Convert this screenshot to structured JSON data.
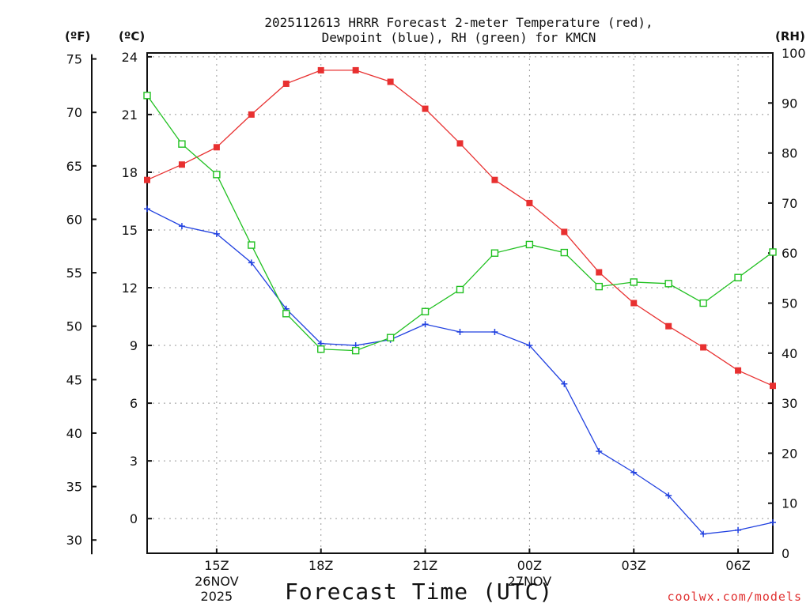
{
  "title": {
    "line1": "2025112613 HRRR Forecast 2-meter Temperature (red),",
    "line2": "Dewpoint (blue), RH (green) for KMCN"
  },
  "units": {
    "fahrenheit": "(ºF)",
    "celsius": "(ºC)",
    "rh": "(RH)"
  },
  "credit": "coolwx.com/models",
  "chart_data": {
    "type": "line",
    "title": "2025112613 HRRR Forecast 2-meter Temperature (red), Dewpoint (blue), RH (green) for KMCN",
    "xlabel": "Forecast Time (UTC)",
    "x": [
      13,
      14,
      15,
      16,
      17,
      18,
      19,
      20,
      21,
      22,
      23,
      24,
      25,
      26,
      27,
      28,
      29,
      30,
      31
    ],
    "xlim": [
      13,
      31
    ],
    "x_ticks": [
      {
        "x": 15,
        "label": "15Z"
      },
      {
        "x": 18,
        "label": "18Z"
      },
      {
        "x": 21,
        "label": "21Z"
      },
      {
        "x": 24,
        "label": "00Z"
      },
      {
        "x": 27,
        "label": "03Z"
      },
      {
        "x": 30,
        "label": "06Z"
      }
    ],
    "date_labels": [
      {
        "x": 15,
        "day": "26NOV",
        "year": "2025"
      },
      {
        "x": 24,
        "day": "27NOV",
        "year": ""
      }
    ],
    "y_celsius": {
      "lim": [
        -1.8,
        24.2
      ],
      "ticks": [
        0,
        3,
        6,
        9,
        12,
        15,
        18,
        21,
        24
      ]
    },
    "y_fahrenheit": {
      "ticks": [
        30,
        35,
        40,
        45,
        50,
        55,
        60,
        65,
        70,
        75
      ]
    },
    "y_rh": {
      "lim": [
        0,
        100
      ],
      "ticks": [
        0,
        10,
        20,
        30,
        40,
        50,
        60,
        70,
        80,
        90,
        100
      ]
    },
    "grid": true,
    "series": [
      {
        "name": "Temperature",
        "axis": "celsius",
        "color": "#e83030",
        "marker": "filled-square",
        "values": [
          17.6,
          18.4,
          19.3,
          21.0,
          22.6,
          23.3,
          23.3,
          22.7,
          21.3,
          19.5,
          17.6,
          16.4,
          14.9,
          12.8,
          11.2,
          10.0,
          8.9,
          7.7,
          6.9
        ]
      },
      {
        "name": "Dewpoint",
        "axis": "celsius",
        "color": "#2040e0",
        "marker": "plus",
        "values": [
          16.1,
          15.2,
          14.8,
          13.3,
          10.9,
          9.1,
          9.0,
          9.3,
          10.1,
          9.7,
          9.7,
          9.0,
          7.0,
          3.5,
          2.4,
          1.2,
          -0.8,
          -0.6,
          -0.2
        ]
      },
      {
        "name": "RH",
        "axis": "rh",
        "color": "#20c020",
        "marker": "open-square",
        "values": [
          91.5,
          81.8,
          75.7,
          61.6,
          47.9,
          40.8,
          40.5,
          43.1,
          48.3,
          52.7,
          60.0,
          61.7,
          60.1,
          53.3,
          54.2,
          53.9,
          50.0,
          55.1,
          60.2
        ]
      }
    ]
  }
}
